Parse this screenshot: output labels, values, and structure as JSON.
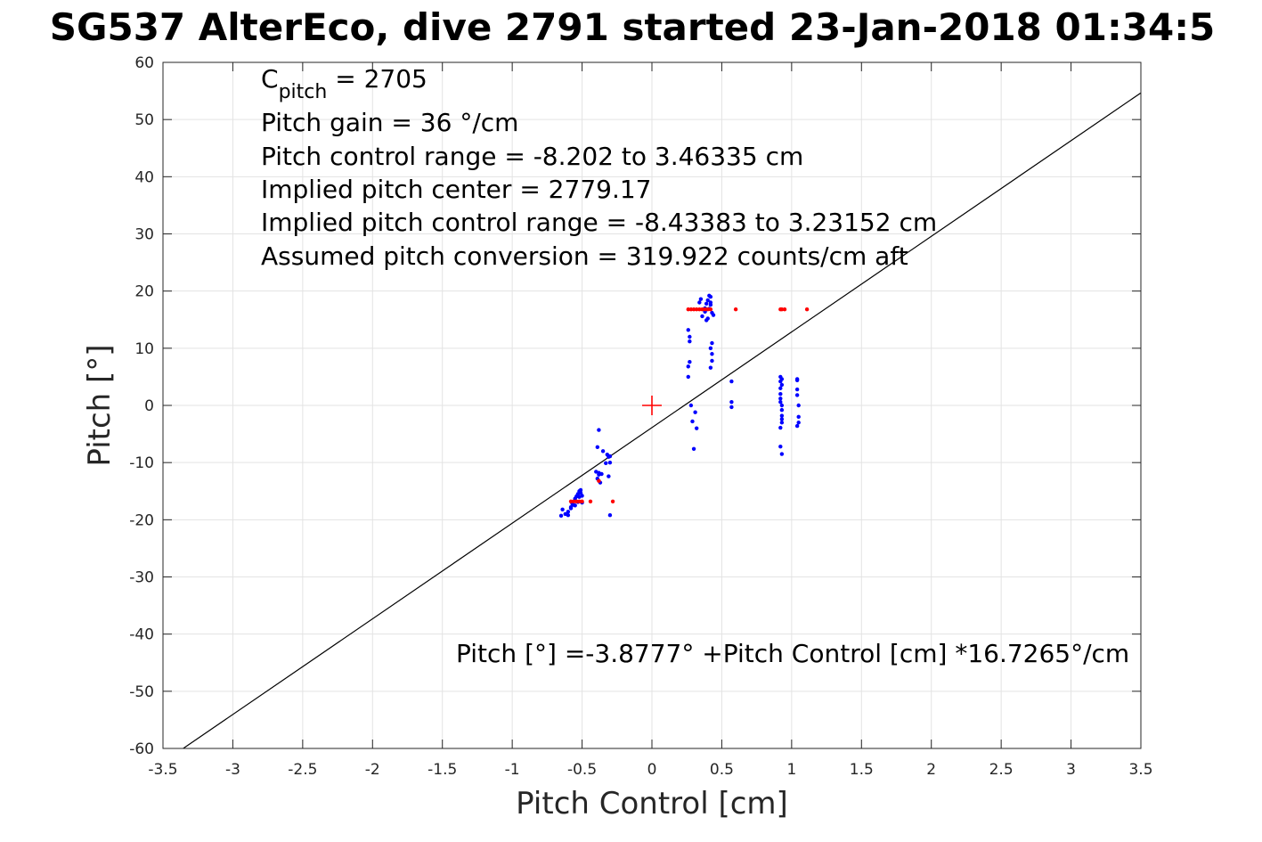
{
  "chart_data": {
    "type": "scatter",
    "title": "SG537 AlterEco, dive 2791 started 23-Jan-2018 01:34:5",
    "xlabel": "Pitch Control [cm]",
    "ylabel": "Pitch [°]",
    "xlim": [
      -3.5,
      3.5
    ],
    "ylim": [
      -60,
      60
    ],
    "grid": true,
    "xticks": [
      -3.5,
      -3,
      -2.5,
      -2,
      -1.5,
      -1,
      -0.5,
      0,
      0.5,
      1,
      1.5,
      2,
      2.5,
      3,
      3.5
    ],
    "xtick_labels": [
      "-3.5",
      "-3",
      "-2.5",
      "-2",
      "-1.5",
      "-1",
      "-0.5",
      "0",
      "0.5",
      "1",
      "1.5",
      "2",
      "2.5",
      "3",
      "3.5"
    ],
    "yticks": [
      -60,
      -50,
      -40,
      -30,
      -20,
      -10,
      0,
      10,
      20,
      30,
      40,
      50,
      60
    ],
    "ytick_labels": [
      "-60",
      "-50",
      "-40",
      "-30",
      "-20",
      "-10",
      "0",
      "10",
      "20",
      "30",
      "40",
      "50",
      "60"
    ],
    "annotations": {
      "cpitch_main": "C",
      "cpitch_sub": "pitch",
      "cpitch_value": " = 2705",
      "lines": [
        "Pitch gain = 36 °/cm",
        "Pitch control range = -8.202 to 3.46335 cm",
        "Implied pitch center = 2779.17",
        "Implied pitch control range = -8.43383 to 3.23152 cm",
        "Assumed pitch conversion = 319.922 counts/cm aft"
      ],
      "fit_equation": "Pitch [°] =-3.8777° +Pitch Control [cm] *16.7265°/cm"
    },
    "fit_line": {
      "intercept": -3.8777,
      "slope": 16.7265,
      "color": "#000000"
    },
    "center_marker": {
      "x": 0,
      "y": 0,
      "color": "#ff0000"
    },
    "series": [
      {
        "color": "#0000ff",
        "x": [
          -0.65,
          -0.64,
          -0.62,
          -0.6,
          -0.58,
          -0.57,
          -0.56,
          -0.55,
          -0.54,
          -0.53,
          -0.52,
          -0.51,
          -0.5,
          -0.55,
          -0.53,
          -0.52,
          -0.5,
          -0.51,
          -0.58,
          -0.56,
          -0.6,
          -0.4,
          -0.39,
          -0.38,
          -0.38,
          -0.37,
          -0.36,
          -0.35,
          -0.33,
          -0.32,
          -0.31,
          -0.31,
          -0.3,
          -0.3,
          -0.3,
          -0.39,
          -0.38,
          0.26,
          0.26,
          0.26,
          0.27,
          0.27,
          0.27,
          0.28,
          0.29,
          0.3,
          0.31,
          0.32,
          0.34,
          0.35,
          0.36,
          0.38,
          0.39,
          0.4,
          0.41,
          0.42,
          0.43,
          0.44,
          0.4,
          0.41,
          0.42,
          0.43,
          0.38,
          0.39,
          0.42,
          0.43,
          0.42,
          0.43,
          0.42,
          0.57,
          0.57,
          0.57,
          0.92,
          0.92,
          0.92,
          0.92,
          0.92,
          0.93,
          0.93,
          0.93,
          0.93,
          0.92,
          0.92,
          0.93,
          0.93,
          0.92,
          0.93,
          0.93,
          1.04,
          1.04,
          1.04,
          1.05,
          1.05,
          1.05,
          1.04,
          1.04
        ],
        "y": [
          -19.3,
          -18.2,
          -19.0,
          -18.6,
          -17.8,
          -17.2,
          -16.8,
          -16.3,
          -15.9,
          -15.5,
          -15.0,
          -15.3,
          -15.8,
          -17.5,
          -16.9,
          -16.0,
          -17.0,
          -14.8,
          -18.0,
          -17.4,
          -19.2,
          -11.6,
          -7.3,
          -4.3,
          -12.1,
          -13.5,
          -12.0,
          -8.0,
          -10.1,
          -8.6,
          -9.0,
          -12.4,
          -8.9,
          -10.0,
          -19.2,
          -12.8,
          -11.8,
          5.0,
          6.8,
          13.2,
          7.6,
          11.2,
          12.0,
          0.0,
          -2.8,
          -7.6,
          -1.2,
          -4.0,
          18.0,
          18.6,
          15.6,
          17.0,
          17.8,
          18.4,
          19.2,
          17.6,
          16.2,
          15.8,
          15.2,
          16.9,
          10.0,
          7.8,
          16.4,
          14.9,
          19.0,
          9.0,
          6.6,
          10.9,
          18.0,
          4.2,
          0.6,
          -0.3,
          5.0,
          4.2,
          3.0,
          2.0,
          1.2,
          0.0,
          -0.8,
          -1.8,
          -3.0,
          -3.9,
          -7.2,
          -8.5,
          -2.4,
          0.6,
          3.6,
          4.6,
          4.6,
          2.8,
          1.8,
          0.0,
          -2.0,
          -3.0,
          -3.6,
          4.4
        ]
      },
      {
        "color": "#ff0000",
        "x": [
          -0.58,
          -0.56,
          -0.54,
          -0.52,
          -0.5,
          -0.44,
          -0.38,
          -0.28,
          0.26,
          0.28,
          0.3,
          0.32,
          0.34,
          0.36,
          0.38,
          0.4,
          0.42,
          0.6,
          0.92,
          0.93,
          0.95,
          1.11
        ],
        "y": [
          -16.8,
          -16.8,
          -16.8,
          -16.8,
          -16.8,
          -16.8,
          -13.2,
          -16.8,
          16.8,
          16.8,
          16.8,
          16.8,
          16.8,
          16.8,
          16.8,
          16.8,
          16.8,
          16.8,
          16.8,
          16.8,
          16.8,
          16.8
        ]
      }
    ]
  }
}
